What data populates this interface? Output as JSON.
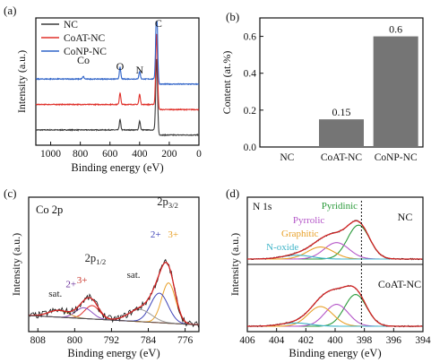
{
  "panels": [
    {
      "id": "a",
      "label": "(a)",
      "xlabel": "Binding energy (eV)",
      "ylabel": "Intensity (a.u.)",
      "xlim": [
        1100,
        0
      ],
      "xticks": [
        1000,
        800,
        600,
        400,
        200,
        0
      ],
      "legend": [
        {
          "name": "NC",
          "color": "#3a3a3a"
        },
        {
          "name": "CoAT-NC",
          "color": "#e0302a"
        },
        {
          "name": "CoNP-NC",
          "color": "#2f63c8"
        }
      ],
      "peak_labels": [
        {
          "text": "Co",
          "x": 780
        },
        {
          "text": "O",
          "x": 532
        },
        {
          "text": "N",
          "x": 400
        },
        {
          "text": "C",
          "x": 285
        }
      ]
    },
    {
      "id": "b",
      "label": "(b)",
      "ylabel": "Content (at.%)",
      "yticks": [
        "0.0",
        "0.2",
        "0.4",
        "0.6"
      ]
    },
    {
      "id": "c",
      "label": "(c)",
      "title": "Co 2p",
      "xlabel": "Binding energy (eV)",
      "ylabel": "Intensity (a.u.)",
      "xlim": [
        810,
        773
      ],
      "xticks": [
        808,
        800,
        792,
        784,
        776
      ],
      "annotations": [
        {
          "text": "sat.",
          "x": 804.2,
          "y": 0.26,
          "color": "#222222"
        },
        {
          "text": "2+",
          "x": 800.8,
          "y": 0.33,
          "color": "#6a2f9a"
        },
        {
          "text": "3+",
          "x": 798.4,
          "y": 0.36,
          "color": "#c9352b"
        },
        {
          "text": "2p1/2",
          "x": 795.5,
          "y": 0.52,
          "color": "#222222"
        },
        {
          "text": "sat.",
          "x": 787.2,
          "y": 0.4,
          "color": "#222222"
        },
        {
          "text": "2+",
          "x": 782.4,
          "y": 0.7,
          "color": "#3f44b8"
        },
        {
          "text": "3+",
          "x": 778.6,
          "y": 0.7,
          "color": "#e8a12a"
        },
        {
          "text": "2p3/2",
          "x": 779.8,
          "y": 0.94,
          "color": "#222222"
        }
      ]
    },
    {
      "id": "d",
      "label": "(d)",
      "title": "N 1s",
      "xlabel": "Binding energy (eV)",
      "ylabel": "Intensity (a.u.)",
      "xlim": [
        406,
        394
      ],
      "xticks": [
        406,
        404,
        402,
        400,
        398,
        396,
        394
      ],
      "species": [
        {
          "name": "Pyridinic",
          "color": "#2a9a3a",
          "x": 399.7
        },
        {
          "name": "Pyrrolic",
          "color": "#b455c8",
          "x": 401.8
        },
        {
          "name": "Graphitic",
          "color": "#e8a12a",
          "x": 402.4
        },
        {
          "name": "N-oxide",
          "color": "#3fb4c8",
          "x": 403.6
        }
      ],
      "top_label": "NC",
      "bottom_label": "CoAT-NC"
    }
  ],
  "chart_data": [
    {
      "type": "line",
      "panel": "a",
      "title": "",
      "xlabel": "Binding energy (eV)",
      "ylabel": "Intensity (a.u.)",
      "xlim": [
        1100,
        0
      ],
      "series": [
        {
          "name": "NC",
          "color": "#3a3a3a",
          "offset": 0.0,
          "base": 0.1,
          "peaks": [
            [
              532,
              0.08
            ],
            [
              400,
              0.07
            ],
            [
              285,
              0.6
            ]
          ]
        },
        {
          "name": "CoAT-NC",
          "color": "#e0302a",
          "offset": 0.2,
          "base": 0.1,
          "peaks": [
            [
              532,
              0.09
            ],
            [
              400,
              0.08
            ],
            [
              285,
              0.6
            ]
          ]
        },
        {
          "name": "CoNP-NC",
          "color": "#2f63c8",
          "offset": 0.4,
          "base": 0.1,
          "peaks": [
            [
              780,
              0.02
            ],
            [
              532,
              0.09
            ],
            [
              400,
              0.06
            ],
            [
              285,
              0.62
            ]
          ]
        }
      ]
    },
    {
      "type": "bar",
      "panel": "b",
      "title": "",
      "xlabel": "",
      "ylabel": "Content (at.%)",
      "ylim": [
        0,
        0.7
      ],
      "categories": [
        "NC",
        "CoAT-NC",
        "CoNP-NC"
      ],
      "values": [
        0,
        0.15,
        0.6
      ],
      "value_labels": [
        "",
        "0.15",
        "0.6"
      ],
      "color": "#757575"
    },
    {
      "type": "line",
      "panel": "c",
      "title": "Co 2p",
      "xlabel": "Binding energy (eV)",
      "ylabel": "Intensity (a.u.)",
      "xlim": [
        810,
        773
      ],
      "components": [
        {
          "name": "3+",
          "color": "#e0302a",
          "center": 796.2,
          "amp": 0.1,
          "width": 1.6
        },
        {
          "name": "2+",
          "color": "#8a4fc0",
          "center": 798.0,
          "amp": 0.08,
          "width": 1.8
        },
        {
          "name": "sat.",
          "color": "#cfa040",
          "center": 803.5,
          "amp": 0.05,
          "width": 2.2
        },
        {
          "name": "3+",
          "color": "#e8a12a",
          "center": 779.6,
          "amp": 0.3,
          "width": 1.5
        },
        {
          "name": "2+",
          "color": "#3f44b8",
          "center": 781.6,
          "amp": 0.22,
          "width": 1.9
        },
        {
          "name": "sat.",
          "color": "#9a9a9a",
          "center": 785.8,
          "amp": 0.09,
          "width": 2.5
        }
      ],
      "background": [
        [
          810,
          0.12
        ],
        [
          773,
          0.05
        ]
      ]
    },
    {
      "type": "line",
      "panel": "d",
      "title": "N 1s",
      "xlabel": "Binding energy (eV)",
      "ylabel": "Intensity (a.u.)",
      "xlim": [
        406,
        394
      ],
      "series": [
        {
          "name": "NC",
          "components": [
            {
              "name": "Pyridinic",
              "color": "#2a9a3a",
              "center": 398.4,
              "amp": 0.62,
              "width": 0.75
            },
            {
              "name": "Pyrrolic",
              "color": "#b455c8",
              "center": 399.9,
              "amp": 0.3,
              "width": 0.85
            },
            {
              "name": "Graphitic",
              "color": "#e8a12a",
              "center": 401.0,
              "amp": 0.22,
              "width": 0.9
            },
            {
              "name": "N-oxide",
              "color": "#3fb4c8",
              "center": 402.6,
              "amp": 0.07,
              "width": 1.0
            }
          ]
        },
        {
          "name": "CoAT-NC",
          "components": [
            {
              "name": "Pyridinic",
              "color": "#2a9a3a",
              "center": 398.6,
              "amp": 0.58,
              "width": 0.75
            },
            {
              "name": "Pyrrolic",
              "color": "#b455c8",
              "center": 399.9,
              "amp": 0.4,
              "width": 0.8
            },
            {
              "name": "Graphitic",
              "color": "#e8a12a",
              "center": 401.0,
              "amp": 0.36,
              "width": 0.85
            },
            {
              "name": "N-oxide",
              "color": "#3fb4c8",
              "center": 402.7,
              "amp": 0.06,
              "width": 1.0
            }
          ]
        }
      ],
      "reference_line": 398.2
    }
  ]
}
